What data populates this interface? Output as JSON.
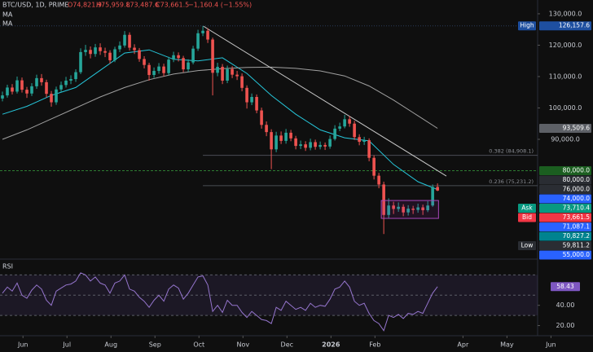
{
  "chart_data": {
    "type": "candlestick",
    "header": {
      "symbol": "BTC/USD, 1D, PRIME",
      "open": "O74,821.9",
      "high": "H75,959.8",
      "low": "L73,487.6",
      "close": "C73,661.5",
      "change": "−1,160.4 (−1.55%)"
    },
    "up_color": "#26a69a",
    "down_color": "#ef5350",
    "open": [
      103000,
      104000,
      106500,
      105200,
      108800,
      105800,
      104600,
      106900,
      109500,
      108200,
      104500,
      101800,
      105900,
      107300,
      108700,
      109200,
      111400,
      117800,
      118500,
      117200,
      119300,
      118100,
      117600,
      115200,
      118700,
      119900,
      123300,
      119200,
      118400,
      115600,
      113700,
      110500,
      111800,
      113200,
      111100,
      115400,
      116800,
      115900,
      112300,
      114500,
      118900,
      123800,
      124600,
      121800,
      111200,
      113100,
      108700,
      112400,
      110600,
      110100,
      106400,
      101800,
      103500,
      99200,
      94600,
      92300,
      86800,
      91200,
      89500,
      92100,
      90300,
      87900,
      88400,
      87300,
      89100,
      87600,
      88200,
      87700,
      90100,
      93400,
      94100,
      96400,
      95000,
      90700,
      89200,
      89700,
      84100,
      78400,
      75600,
      65900,
      68900,
      67800,
      68500,
      66700,
      67900,
      67500,
      68300,
      67400,
      68900,
      74821.9
    ],
    "high": [
      105200,
      107400,
      107600,
      110000,
      109700,
      106700,
      107900,
      110600,
      110800,
      109000,
      105400,
      106800,
      108400,
      109900,
      110400,
      112300,
      119000,
      120100,
      119600,
      120400,
      120600,
      119200,
      118400,
      119500,
      121200,
      124500,
      124100,
      120300,
      119100,
      116500,
      114400,
      112900,
      114300,
      114100,
      116300,
      117900,
      117700,
      116600,
      115500,
      119800,
      124900,
      126157.6,
      125400,
      122400,
      114400,
      114000,
      113500,
      113300,
      111800,
      111000,
      107200,
      104600,
      104300,
      100100,
      95700,
      93200,
      92400,
      92500,
      93300,
      93000,
      91100,
      89600,
      89400,
      90200,
      89900,
      89300,
      89000,
      91200,
      94500,
      95300,
      97800,
      97400,
      95900,
      91600,
      90800,
      90300,
      84900,
      79300,
      76500,
      71200,
      70100,
      69900,
      69300,
      69000,
      68800,
      69500,
      69200,
      70300,
      75600,
      75959.8
    ],
    "low": [
      102100,
      103300,
      104300,
      104600,
      104900,
      103200,
      103800,
      106100,
      107100,
      103300,
      100400,
      101000,
      105000,
      106500,
      107600,
      108300,
      110800,
      116600,
      115800,
      116300,
      116900,
      116200,
      114100,
      114600,
      117800,
      119200,
      118300,
      117200,
      114700,
      112600,
      108700,
      109600,
      110900,
      110100,
      110400,
      114600,
      114800,
      111400,
      111500,
      113900,
      118200,
      122900,
      120700,
      104000,
      110100,
      107600,
      107900,
      109500,
      108900,
      105300,
      99800,
      100900,
      98300,
      93400,
      91000,
      80500,
      85900,
      88500,
      88600,
      89400,
      86800,
      86900,
      86300,
      86500,
      86700,
      86800,
      86600,
      87000,
      89600,
      92600,
      93500,
      94000,
      89800,
      88100,
      88200,
      83000,
      77200,
      74400,
      59811.2,
      64800,
      66200,
      66900,
      65500,
      65700,
      66200,
      66600,
      65900,
      66800,
      68500,
      73487.6
    ],
    "close": [
      104000,
      106500,
      105200,
      108800,
      105800,
      104600,
      106900,
      109500,
      108200,
      104500,
      101800,
      105900,
      107300,
      108700,
      109200,
      111400,
      117800,
      118500,
      117200,
      119300,
      118100,
      117600,
      115200,
      118700,
      119900,
      123300,
      119200,
      118400,
      115600,
      113700,
      110500,
      111800,
      113200,
      111100,
      115400,
      116800,
      115900,
      112300,
      114500,
      118900,
      123800,
      124600,
      121800,
      111200,
      113100,
      108700,
      112400,
      110600,
      110100,
      106400,
      101800,
      103500,
      99200,
      94600,
      92300,
      86800,
      91200,
      89500,
      92100,
      90300,
      87900,
      88400,
      87300,
      89100,
      87600,
      88200,
      87700,
      90100,
      93400,
      94100,
      96400,
      95000,
      90700,
      89200,
      89700,
      84100,
      78400,
      75600,
      65900,
      68900,
      67800,
      68500,
      66700,
      67900,
      67500,
      68300,
      67400,
      68900,
      74821.9,
      73661.5
    ],
    "ma": [
      {
        "name": "MA",
        "color": "#26c6da",
        "x": [
          0,
          5,
          10,
          15,
          20,
          25,
          30,
          35,
          40,
          45,
          50,
          55,
          60,
          65,
          70,
          75,
          80,
          85,
          89
        ],
        "values": [
          98000,
          100500,
          104000,
          106500,
          112000,
          117500,
          118500,
          115500,
          115000,
          116000,
          111000,
          104000,
          98000,
          93000,
          90500,
          89500,
          82000,
          76500,
          74000
        ]
      },
      {
        "name": "MA",
        "color": "#a0a0a0",
        "x": [
          0,
          5,
          10,
          15,
          20,
          25,
          30,
          35,
          40,
          45,
          50,
          55,
          60,
          65,
          70,
          75,
          80,
          85,
          89
        ],
        "values": [
          90000,
          93000,
          96500,
          100000,
          103500,
          106500,
          109000,
          110800,
          111900,
          112500,
          112900,
          113000,
          112600,
          111800,
          110200,
          107000,
          102500,
          97500,
          93509.6
        ]
      }
    ],
    "xlim": [
      -0.5,
      120.8
    ],
    "xticks": [
      {
        "value": 4.2,
        "label": "Jun"
      },
      {
        "value": 13.2,
        "label": "Jul"
      },
      {
        "value": 22.2,
        "label": "Aug"
      },
      {
        "value": 31.2,
        "label": "Sep"
      },
      {
        "value": 40.2,
        "label": "Oct"
      },
      {
        "value": 49.2,
        "label": "Nov"
      },
      {
        "value": 58.2,
        "label": "Dec"
      },
      {
        "value": 67.2,
        "label": "2026"
      },
      {
        "value": 76.2,
        "label": "Feb"
      },
      {
        "value": 94.2,
        "label": "Apr"
      },
      {
        "value": 103.2,
        "label": "May"
      },
      {
        "value": 112.2,
        "label": "Jun"
      }
    ],
    "ylim": [
      52600,
      134400
    ],
    "yticks": [
      {
        "value": 130000,
        "label": "130,000.0"
      },
      {
        "value": 120000,
        "label": "120,000.0"
      },
      {
        "value": 110000,
        "label": "110,000.0"
      },
      {
        "value": 100000,
        "label": "100,000.0"
      },
      {
        "value": 90000,
        "label": "90,000.0"
      }
    ],
    "trendline": {
      "x": [
        41,
        90.8
      ],
      "y": [
        126157.6,
        78300
      ]
    },
    "fib_levels": [
      {
        "value": 84908.1,
        "label": "0.382 (84,908.1)"
      },
      {
        "value": 75231.2,
        "label": "0.236 (75,231.2)"
      }
    ],
    "level_line": 80000,
    "box": {
      "x": [
        77.5,
        89.2
      ],
      "y": [
        64800,
        70500
      ]
    },
    "price_labels": [
      {
        "tag": "High",
        "value": 126157.6,
        "label": "126,157.6",
        "color": "#1e4fa0"
      },
      {
        "value": 93509.6,
        "label": "93,509.6",
        "color": "#5d6066"
      },
      {
        "value": 80000,
        "label": "80,000.0",
        "color": "#1b5e20"
      },
      {
        "value": 80000,
        "label": "80,000.0",
        "color": "#2a2d33"
      },
      {
        "value": 76000,
        "label": "76,000.0",
        "color": "#2a2d33"
      },
      {
        "value": 74000,
        "label": "74,000.0",
        "color": "#2962ff"
      },
      {
        "tag": "Ask",
        "value": 73710.4,
        "label": "73,710.4",
        "color": "#089981"
      },
      {
        "tag": "Bid",
        "value": 73661.5,
        "label": "73,661.5",
        "color": "#f23645"
      },
      {
        "value": 71087.1,
        "label": "71,087.1",
        "color": "#2962ff"
      },
      {
        "value": 70827.2,
        "label": "70,827.2",
        "color": "#00838f"
      },
      {
        "tag": "Low",
        "value": 59811.2,
        "label": "59,811.2",
        "color": "#2a2d33"
      },
      {
        "value": 55000,
        "label": "55,000.0",
        "color": "#2962ff"
      }
    ],
    "rsi": {
      "name": "RSI",
      "color": "#9575cd",
      "values": [
        52,
        58,
        54,
        62,
        50,
        47,
        55,
        60,
        56,
        45,
        40,
        54,
        57,
        60,
        61,
        64,
        72,
        70,
        64,
        68,
        62,
        60,
        52,
        62,
        64,
        70,
        56,
        54,
        48,
        44,
        38,
        45,
        50,
        44,
        56,
        60,
        57,
        46,
        52,
        60,
        68,
        69,
        60,
        34,
        40,
        33,
        45,
        40,
        40,
        33,
        28,
        34,
        30,
        26,
        25,
        22,
        38,
        35,
        44,
        40,
        36,
        38,
        35,
        42,
        38,
        40,
        39,
        46,
        56,
        58,
        64,
        58,
        44,
        40,
        42,
        32,
        25,
        22,
        15,
        30,
        28,
        31,
        27,
        32,
        31,
        34,
        32,
        42,
        52,
        58.43
      ],
      "last_label": "58.43",
      "ylim": [
        10,
        84
      ],
      "yticks": [
        {
          "value": 40,
          "label": "40.00"
        },
        {
          "value": 20,
          "label": "20.00"
        }
      ],
      "levels": [
        70,
        50,
        30
      ]
    }
  }
}
